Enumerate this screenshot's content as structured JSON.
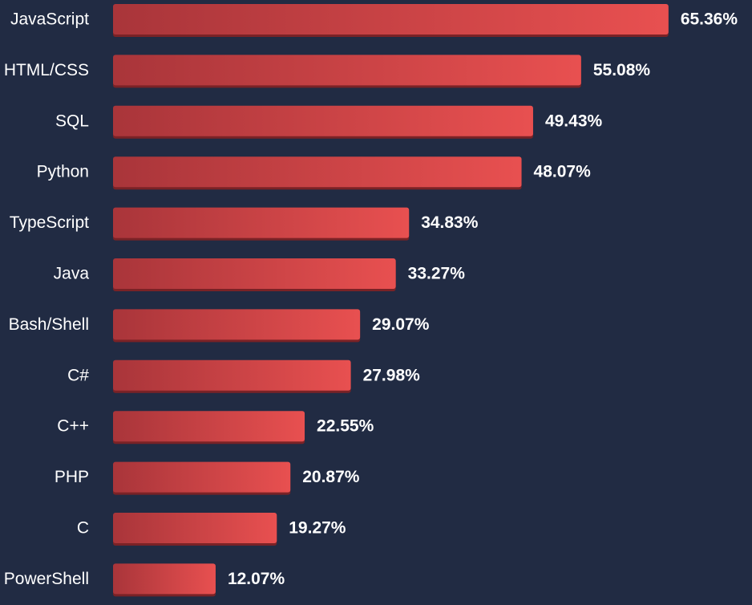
{
  "chart_data": {
    "type": "bar",
    "orientation": "horizontal",
    "categories": [
      "JavaScript",
      "HTML/CSS",
      "SQL",
      "Python",
      "TypeScript",
      "Java",
      "Bash/Shell",
      "C#",
      "C++",
      "PHP",
      "C",
      "PowerShell"
    ],
    "values": [
      65.36,
      55.08,
      49.43,
      48.07,
      34.83,
      33.27,
      29.07,
      27.98,
      22.55,
      20.87,
      19.27,
      12.07
    ],
    "value_labels": [
      "65.36%",
      "55.08%",
      "49.43%",
      "48.07%",
      "34.83%",
      "33.27%",
      "29.07%",
      "27.98%",
      "22.55%",
      "20.87%",
      "19.27%",
      "12.07%"
    ],
    "title": "",
    "xlabel": "",
    "ylabel": "",
    "grid": false,
    "legend": "none",
    "colors": {
      "background": "#212b43",
      "bar_start": "#a9353a",
      "bar_end": "#e85050",
      "bar_shadow": "#7a2226",
      "text": "#ffffff"
    }
  }
}
